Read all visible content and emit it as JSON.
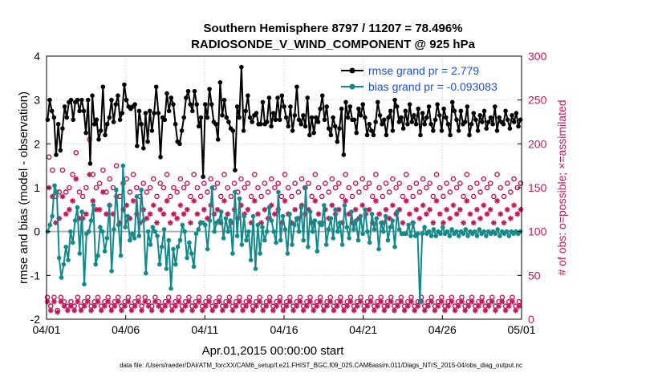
{
  "chart_data": {
    "type": "line",
    "title": "Southern Hemisphere 8797 / 11207 = 78.496%",
    "subtitle": "RADIOSONDE_V_WIND_COMPONENT @ 925 hPa",
    "xlabel": "Apr.01,2015 00:00:00 start",
    "ylabel": "rmse and bias (model - observation)",
    "y2label": "# of obs: o=possible; ×=assimilated",
    "xlim": [
      0,
      30
    ],
    "ylim": [
      -2,
      4
    ],
    "y2lim": [
      0,
      300
    ],
    "x_ticks": [
      0,
      5,
      10,
      15,
      20,
      25,
      30
    ],
    "x_tick_labels": [
      "04/01",
      "04/06",
      "04/11",
      "04/16",
      "04/21",
      "04/26",
      "05/01"
    ],
    "y_ticks": [
      "-2",
      "-1",
      "0",
      "1",
      "2",
      "3",
      "4"
    ],
    "y2_ticks": [
      "0",
      "50",
      "100",
      "150",
      "200",
      "250",
      "300"
    ],
    "grid": true,
    "legend_position": "top-right",
    "footer": "data file: /Users/raeder/DAI/ATM_forcXX/CAM6_setup/f.e21.FHIST_BGC.f09_025.CAM6assim.011/Diags_NTrS_2015-04/obs_diag_output.nc",
    "series": [
      {
        "name": "rmse grand pr = 2.779",
        "color": "#000000",
        "marker": "filled-circle",
        "values": [
          2.55,
          3.0,
          2.75,
          2.6,
          1.75,
          2.45,
          1.85,
          2.35,
          2.85,
          2.6,
          2.95,
          3.0,
          2.55,
          2.95,
          3.0,
          2.75,
          3.0,
          2.75,
          2.25,
          3.0,
          1.55,
          3.1,
          2.45,
          2.55,
          2.1,
          2.3,
          3.3,
          2.2,
          2.45,
          2.6,
          3.0,
          2.5,
          2.9,
          3.1,
          2.55,
          2.7,
          3.35,
          3.0,
          2.85,
          2.8,
          2.85,
          2.9,
          1.95,
          2.75,
          2.45,
          1.9,
          2.7,
          2.05,
          2.75,
          2.3,
          2.7,
          3.3,
          2.7,
          1.7,
          2.6,
          2.55,
          3.15,
          2.75,
          3.05,
          2.9,
          2.45,
          2.05,
          2.0,
          2.3,
          2.6,
          3.05,
          3.2,
          2.9,
          2.75,
          3.2,
          2.9,
          2.4,
          2.6,
          1.25,
          2.9,
          2.6,
          3.25,
          2.9,
          2.5,
          2.45,
          2.1,
          3.4,
          2.65,
          3.0,
          2.6,
          2.5,
          2.35,
          2.3,
          1.4,
          2.85,
          2.6,
          3.75,
          2.3,
          2.75,
          3.1,
          2.6,
          2.5,
          2.65,
          2.7,
          2.45,
          2.45,
          2.95,
          2.45,
          2.5,
          3.05,
          2.4,
          2.7,
          2.55,
          3.05,
          2.55,
          3.1,
          2.85,
          2.6,
          2.4,
          2.85,
          2.3,
          2.65,
          3.3,
          2.55,
          2.45,
          2.65,
          2.4,
          3.05,
          2.2,
          2.6,
          2.25,
          2.6,
          2.5,
          2.8,
          3.1,
          2.55,
          2.85,
          2.35,
          2.2,
          2.6,
          2.4,
          2.05,
          2.35,
          2.8,
          1.75,
          2.95,
          2.6,
          2.85,
          2.55,
          2.55,
          2.25,
          2.8,
          2.65,
          2.9,
          2.6,
          2.2,
          2.45,
          2.3,
          2.2,
          2.5,
          2.95,
          2.65,
          2.45,
          2.55,
          2.2,
          2.6,
          2.75,
          2.3,
          3.0,
          2.85,
          2.5,
          2.6,
          2.35,
          2.75,
          2.45,
          2.9,
          2.5,
          2.65,
          2.45,
          2.8,
          2.2,
          2.7,
          2.45,
          2.6,
          2.85,
          2.45,
          2.3,
          2.55,
          2.9,
          2.65,
          2.3,
          2.8,
          2.6,
          2.45,
          2.2,
          2.95,
          2.75,
          2.55,
          2.3,
          2.75,
          2.45,
          2.5,
          2.85,
          2.2,
          2.45,
          2.7,
          2.55,
          2.3,
          2.65,
          2.5,
          2.75,
          2.35,
          2.5,
          2.6,
          2.45,
          2.85,
          2.3,
          2.6,
          2.5,
          2.45,
          2.75,
          2.55,
          2.35,
          2.65,
          2.5,
          2.7,
          2.4,
          2.55
        ]
      },
      {
        "name": "bias grand pr = -0.093083",
        "color": "#138a8a",
        "marker": "filled-circle",
        "values": [
          0.0,
          0.15,
          0.35,
          1.05,
          0.9,
          -0.6,
          -1.05,
          -0.75,
          -0.35,
          -0.65,
          0.0,
          -0.25,
          0.25,
          0.55,
          -0.5,
          0.45,
          -1.2,
          -0.05,
          0.0,
          0.25,
          0.6,
          -0.75,
          -0.55,
          0.1,
          0.0,
          -0.45,
          -0.15,
          0.6,
          -0.9,
          0.05,
          0.95,
          0.15,
          -0.55,
          1.5,
          0.1,
          0.35,
          -0.2,
          -0.05,
          -0.15,
          0.8,
          -0.1,
          0.95,
          0.25,
          -0.95,
          0.0,
          -0.3,
          0.1,
          0.0,
          -0.1,
          -0.75,
          -0.35,
          0.05,
          -0.85,
          -0.2,
          -1.3,
          -0.4,
          -0.75,
          -0.35,
          -0.2,
          0.15,
          0.0,
          -0.6,
          -0.25,
          -0.5,
          -0.8,
          -0.05,
          0.05,
          0.2,
          0.2,
          0.15,
          -0.4,
          0.25,
          1.0,
          0.0,
          0.2,
          0.25,
          0.45,
          -0.15,
          0.3,
          0.0,
          0.25,
          -0.5,
          0.9,
          -0.1,
          0.75,
          -0.3,
          0.35,
          -0.2,
          0.0,
          -0.65,
          0.35,
          -0.85,
          0.15,
          -0.5,
          0.1,
          -0.2,
          0.0,
          0.55,
          0.25,
          0.0,
          -0.25,
          0.9,
          -0.2,
          0.35,
          0.05,
          -0.5,
          0.4,
          -0.3,
          0.15,
          0.3,
          0.0,
          0.55,
          -0.2,
          1.0,
          -0.35,
          0.45,
          0.0,
          0.25,
          -0.45,
          0.2,
          0.15,
          0.6,
          -0.3,
          0.05,
          0.3,
          -0.15,
          0.5,
          0.0,
          0.2,
          -0.3,
          0.6,
          0.1,
          -0.15,
          0.45,
          0.05,
          0.25,
          -0.2,
          0.35,
          -0.05,
          0.5,
          0.0,
          -0.25,
          0.4,
          0.05,
          0.3,
          -0.4,
          0.2,
          0.0,
          0.35,
          -0.2,
          0.1,
          0.25,
          -0.35,
          0.45,
          0.05,
          -0.05,
          -0.05,
          -0.05,
          0.15,
          -0.1,
          0.2,
          -0.1,
          -0.05,
          -1.6,
          -0.05,
          0.1,
          -0.05,
          0.0,
          -0.1,
          0.05,
          -0.1,
          0.0,
          -0.05,
          0.1,
          -0.05,
          0.0,
          -0.1,
          0.05,
          -0.05,
          0.0,
          -0.1,
          0.0,
          -0.05,
          0.05,
          -0.1,
          0.0,
          -0.05,
          0.0,
          -0.1,
          0.05,
          -0.05,
          0.0,
          -0.1,
          0.0,
          -0.05,
          0.0,
          -0.05,
          0.05,
          -0.1,
          0.0,
          -0.05,
          0.0,
          -0.1,
          0.0,
          -0.05,
          0.0,
          -0.05,
          0.0
        ]
      }
    ],
    "count_series": [
      {
        "name": "possible",
        "marker": "open-circle",
        "color": "#c2185b",
        "values": [
          25,
          185,
          15,
          170,
          25,
          140,
          10,
          145,
          25,
          170,
          20,
          145,
          15,
          150,
          20,
          165,
          15,
          190,
          25,
          145,
          15,
          140,
          20,
          150,
          25,
          205,
          15,
          165,
          20,
          150,
          25,
          155,
          15,
          170,
          20,
          145,
          25,
          160,
          15,
          150,
          20,
          175,
          25,
          140,
          15,
          155,
          20,
          160,
          25,
          145,
          15,
          165,
          20,
          150,
          25,
          140,
          15,
          155,
          25,
          145,
          20,
          150,
          15,
          160,
          25,
          140,
          20,
          155,
          15,
          150,
          20,
          165,
          25,
          140,
          15,
          150,
          20,
          145,
          25,
          160,
          15,
          150,
          20,
          155,
          25,
          140,
          15,
          165,
          20,
          150,
          25,
          140,
          15,
          155,
          20,
          145,
          25,
          160,
          15,
          150,
          20,
          155,
          25,
          140,
          15,
          165,
          20,
          150,
          25,
          140,
          15,
          155,
          20,
          145,
          25,
          160,
          15,
          150,
          20,
          155,
          25,
          140,
          15,
          165,
          20,
          150,
          25,
          140,
          15,
          155,
          20,
          145,
          25,
          160,
          15,
          150,
          20,
          155,
          25,
          140,
          15,
          165,
          20,
          150,
          25,
          140,
          15,
          155,
          20,
          145,
          25,
          160,
          15,
          150,
          20,
          155,
          25,
          140,
          15,
          165,
          20,
          150,
          25,
          140,
          15,
          155,
          20,
          145,
          25,
          160,
          15,
          150,
          20,
          155,
          25,
          140,
          15,
          165,
          20,
          150,
          25,
          140,
          15,
          155,
          20,
          145,
          25,
          160,
          15,
          150,
          20,
          155,
          25,
          140,
          15,
          165,
          20,
          150,
          25,
          140,
          15,
          155,
          20,
          145,
          25,
          160,
          15,
          150,
          20,
          155,
          25,
          140,
          15,
          165,
          20,
          150,
          25,
          140,
          15,
          155,
          20,
          145,
          25,
          160,
          15,
          150,
          20,
          155,
          25,
          140,
          15,
          165,
          20,
          150,
          25,
          140,
          15,
          155,
          20,
          145,
          25,
          160,
          15,
          150,
          20,
          155,
          25,
          140,
          15,
          165,
          20,
          150,
          25,
          140,
          15,
          155,
          20,
          145,
          25,
          160,
          15,
          150,
          20,
          155,
          25,
          140,
          15,
          165,
          20,
          150,
          25,
          140,
          15,
          155,
          20,
          145,
          25,
          160,
          15,
          150,
          20,
          155
        ]
      },
      {
        "name": "assimilated",
        "marker": "asterisk",
        "color": "#c2185b",
        "values": [
          20,
          150,
          10,
          140,
          20,
          110,
          8,
          115,
          20,
          140,
          15,
          120,
          10,
          125,
          15,
          135,
          10,
          160,
          20,
          115,
          10,
          115,
          15,
          120,
          20,
          165,
          10,
          135,
          15,
          125,
          20,
          125,
          10,
          145,
          15,
          120,
          20,
          130,
          10,
          120,
          15,
          140,
          20,
          110,
          10,
          125,
          15,
          130,
          20,
          115,
          10,
          135,
          15,
          120,
          20,
          110,
          10,
          125,
          20,
          115,
          15,
          120,
          10,
          130,
          20,
          110,
          15,
          125,
          10,
          120,
          15,
          135,
          20,
          110,
          10,
          120,
          15,
          115,
          20,
          130,
          10,
          120,
          15,
          125,
          20,
          110,
          10,
          135,
          15,
          120,
          20,
          110,
          10,
          125,
          15,
          115,
          20,
          130,
          10,
          120,
          15,
          125,
          20,
          110,
          10,
          135,
          15,
          120,
          20,
          110,
          10,
          125,
          15,
          115,
          20,
          130,
          10,
          120,
          15,
          125,
          20,
          110,
          10,
          135,
          15,
          120,
          20,
          110,
          10,
          125,
          15,
          115,
          20,
          130,
          10,
          120,
          15,
          125,
          20,
          110,
          10,
          135,
          15,
          120,
          20,
          110,
          10,
          125,
          15,
          115,
          20,
          130,
          10,
          120,
          15,
          125,
          20,
          110,
          10,
          135,
          15,
          120,
          20,
          110,
          10,
          125,
          15,
          115,
          20,
          130,
          10,
          120,
          15,
          125,
          20,
          110,
          10,
          135,
          15,
          120,
          20,
          110,
          10,
          125,
          15,
          115,
          20,
          130,
          10,
          120,
          15,
          125,
          20,
          110,
          10,
          135,
          15,
          120,
          20,
          110,
          10,
          125,
          15,
          115,
          20,
          130,
          10,
          120,
          15,
          125,
          20,
          110,
          10,
          135,
          15,
          120,
          20,
          110,
          10,
          125,
          15,
          115,
          20,
          130,
          10,
          120,
          15,
          125,
          20,
          110,
          10,
          135,
          15,
          120,
          20,
          110,
          10,
          125,
          15,
          115,
          20,
          130,
          10,
          120,
          15,
          125,
          20,
          110,
          10,
          135,
          15,
          120,
          20,
          110,
          10,
          125,
          15,
          115,
          20,
          130,
          10,
          120,
          15,
          125,
          20,
          110,
          10,
          135,
          15,
          120,
          20,
          110,
          10,
          125,
          15,
          115,
          20,
          130,
          10,
          120,
          15,
          125
        ]
      }
    ]
  }
}
